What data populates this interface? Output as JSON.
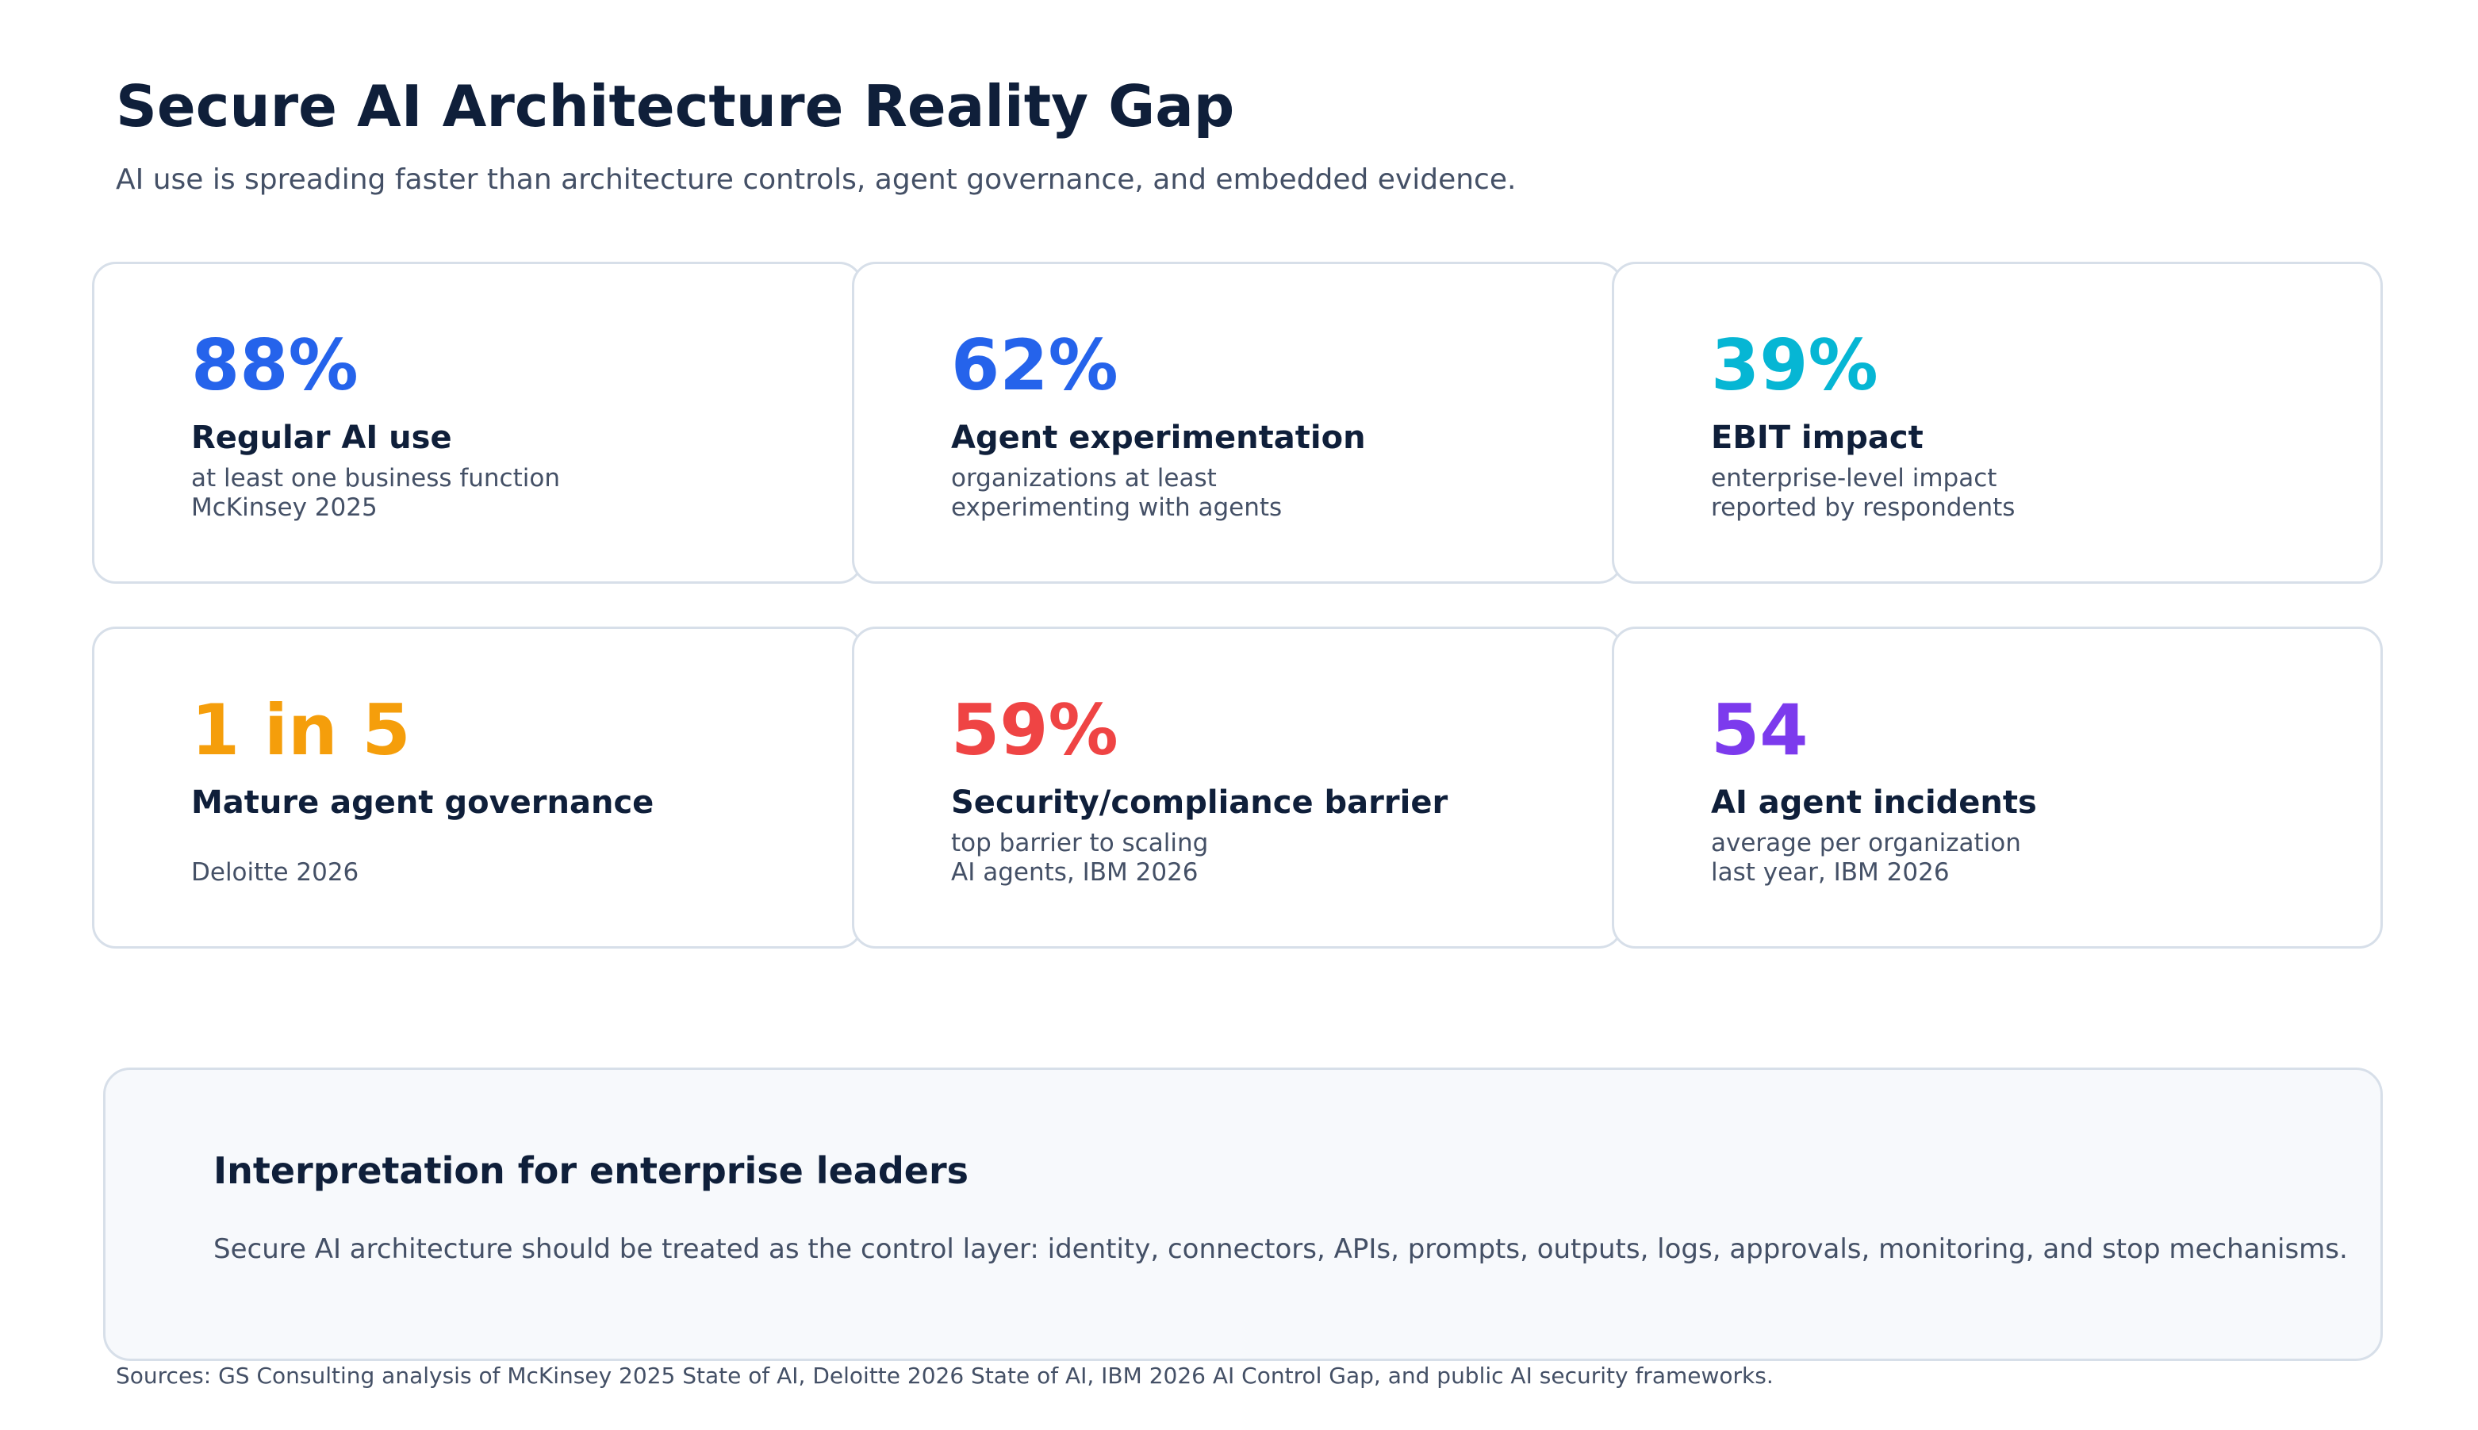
{
  "header": {
    "title": "Secure AI Architecture Reality Gap",
    "subtitle": "AI use is spreading faster than architecture controls, agent governance, and embedded evidence."
  },
  "cards": [
    {
      "value": "88%",
      "label": "Regular AI use",
      "desc": [
        "at least one business function",
        "McKinsey 2025"
      ],
      "color": "#2563eb"
    },
    {
      "value": "62%",
      "label": "Agent experimentation",
      "desc": [
        "organizations at least",
        "experimenting with agents"
      ],
      "color": "#2563eb"
    },
    {
      "value": "39%",
      "label": "EBIT impact",
      "desc": [
        "enterprise-level impact",
        "reported by respondents"
      ],
      "color": "#06b6d4"
    },
    {
      "value": "1 in 5",
      "label": "Mature agent governance",
      "desc": [
        "",
        "Deloitte 2026"
      ],
      "color": "#f59e0b"
    },
    {
      "value": "59%",
      "label": "Security/compliance barrier",
      "desc": [
        "top barrier to scaling",
        "AI agents, IBM 2026"
      ],
      "color": "#ef4444"
    },
    {
      "value": "54",
      "label": "AI agent incidents",
      "desc": [
        "average per organization",
        "last year, IBM 2026"
      ],
      "color": "#7c3aed"
    }
  ],
  "interpretation": {
    "heading": "Interpretation for enterprise leaders",
    "body": "Secure AI architecture should be treated as the control layer: identity, connectors, APIs, prompts, outputs, logs, approvals, monitoring, and stop mechanisms."
  },
  "sources": "Sources: GS Consulting analysis of McKinsey 2025 State of AI, Deloitte 2026 State of AI, IBM 2026 AI Control Gap, and public AI security frameworks."
}
